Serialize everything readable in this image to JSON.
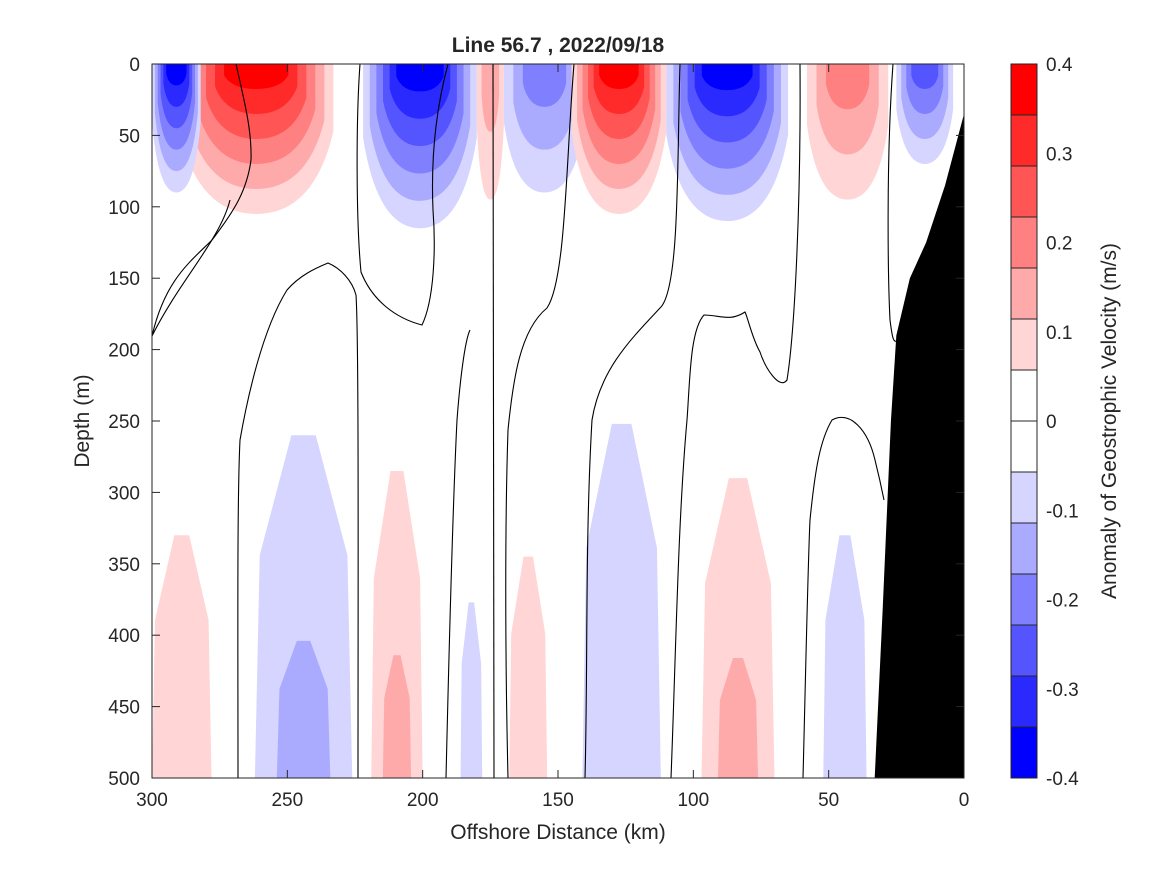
{
  "chart_data": {
    "type": "heatmap",
    "title": "Line 56.7 , 2022/09/18",
    "xlabel": "Offshore Distance (km)",
    "ylabel": "Depth (m)",
    "xlim": [
      300,
      0
    ],
    "ylim": [
      0,
      500
    ],
    "x_reversed": true,
    "y_reversed": true,
    "x_ticks": [
      300,
      250,
      200,
      150,
      100,
      50,
      0
    ],
    "y_ticks": [
      0,
      50,
      100,
      150,
      200,
      250,
      300,
      350,
      400,
      450,
      500
    ],
    "colorbar": {
      "label": "Anomaly of Geostrophic Velocity (m/s)",
      "range": [
        -0.4,
        0.4
      ],
      "ticks": [
        0.4,
        0.3,
        0.2,
        0.1,
        0,
        -0.1,
        -0.2,
        -0.3,
        -0.4
      ],
      "levels": [
        0.35,
        0.3,
        0.25,
        0.2,
        0.15,
        0.1,
        0.05,
        0.0,
        -0.05,
        -0.1,
        -0.15,
        -0.2,
        -0.25,
        -0.3,
        -0.35,
        -0.4
      ],
      "colors": [
        "#ff0000",
        "#ff2a2a",
        "#ff5555",
        "#ff8080",
        "#ffaaaa",
        "#ffd5d5",
        "#ffffff",
        "#ffffff",
        "#d5d5ff",
        "#aaaaff",
        "#8080ff",
        "#5555ff",
        "#2a2aff",
        "#0000ff"
      ]
    },
    "surface_features": [
      {
        "type": "positive",
        "x_km": [
          233,
          290
        ],
        "depth_max_m": 105,
        "peak": 0.35
      },
      {
        "type": "negative",
        "x_km": [
          282,
          300
        ],
        "depth_max_m": 90,
        "peak": -0.3
      },
      {
        "type": "negative",
        "x_km": [
          180,
          222
        ],
        "depth_max_m": 115,
        "peak": -0.3
      },
      {
        "type": "positive",
        "x_km": [
          170,
          180
        ],
        "depth_max_m": 95,
        "peak": 0.1
      },
      {
        "type": "negative",
        "x_km": [
          140,
          170
        ],
        "depth_max_m": 90,
        "peak": -0.15
      },
      {
        "type": "positive",
        "x_km": [
          110,
          145
        ],
        "depth_max_m": 105,
        "peak": 0.35
      },
      {
        "type": "negative",
        "x_km": [
          65,
          110
        ],
        "depth_max_m": 110,
        "peak": -0.3
      },
      {
        "type": "positive",
        "x_km": [
          28,
          58
        ],
        "depth_max_m": 95,
        "peak": 0.15
      },
      {
        "type": "negative",
        "x_km": [
          4,
          25
        ],
        "depth_max_m": 70,
        "peak": -0.2
      }
    ],
    "deep_features": [
      {
        "type": "positive",
        "x_km": [
          278,
          300
        ],
        "depth_range_m": [
          330,
          500
        ],
        "peak": 0.05
      },
      {
        "type": "negative",
        "x_km": [
          226,
          262
        ],
        "depth_range_m": [
          260,
          500
        ],
        "peak": -0.1
      },
      {
        "type": "positive",
        "x_km": [
          200,
          219
        ],
        "depth_range_m": [
          285,
          500
        ],
        "peak": 0.1
      },
      {
        "type": "negative",
        "x_km": [
          178,
          186
        ],
        "depth_range_m": [
          377,
          500
        ],
        "peak": -0.05
      },
      {
        "type": "positive",
        "x_km": [
          154,
          168
        ],
        "depth_range_m": [
          345,
          500
        ],
        "peak": 0.05
      },
      {
        "type": "negative",
        "x_km": [
          112,
          141
        ],
        "depth_range_m": [
          252,
          500
        ],
        "peak": -0.05
      },
      {
        "type": "positive",
        "x_km": [
          70,
          97
        ],
        "depth_range_m": [
          290,
          500
        ],
        "peak": 0.1
      },
      {
        "type": "negative",
        "x_km": [
          36,
          52
        ],
        "depth_range_m": [
          330,
          500
        ],
        "peak": -0.05
      }
    ],
    "bathymetry": {
      "color": "#000000",
      "x_km": [
        0,
        0,
        7,
        14,
        20,
        25,
        27,
        30,
        33
      ],
      "depth_m": [
        500,
        35,
        85,
        125,
        150,
        190,
        250,
        380,
        500
      ]
    }
  }
}
